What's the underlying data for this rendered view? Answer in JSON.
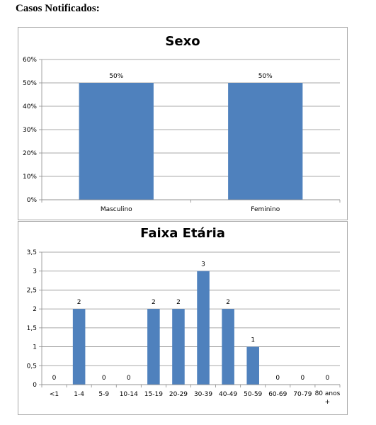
{
  "page": {
    "heading": "Casos Notificados:"
  },
  "chart_data": [
    {
      "type": "bar",
      "title": "Sexo",
      "categories": [
        "Masculino",
        "Feminino"
      ],
      "values": [
        50,
        50
      ],
      "value_labels": [
        "50%",
        "50%"
      ],
      "yticks": [
        "0%",
        "10%",
        "20%",
        "30%",
        "40%",
        "50%",
        "60%"
      ],
      "ylim": [
        0,
        60
      ],
      "grid": true,
      "legend": "none",
      "bar_color": "#4f81bd"
    },
    {
      "type": "bar",
      "title": "Faixa Etária",
      "categories": [
        "<1",
        "1-4",
        "5-9",
        "10-14",
        "15-19",
        "20-29",
        "30-39",
        "40-49",
        "50-59",
        "60-69",
        "70-79",
        "80 anos +"
      ],
      "values": [
        0,
        2,
        0,
        0,
        2,
        2,
        3,
        2,
        1,
        0,
        0,
        0
      ],
      "value_labels": [
        "0",
        "2",
        "0",
        "0",
        "2",
        "2",
        "3",
        "2",
        "1",
        "0",
        "0",
        "0"
      ],
      "yticks": [
        "0",
        "0,5",
        "1",
        "1,5",
        "2",
        "2,5",
        "3",
        "3,5"
      ],
      "ylim": [
        0,
        3.5
      ],
      "grid": true,
      "legend": "none",
      "bar_color": "#4f81bd"
    }
  ]
}
